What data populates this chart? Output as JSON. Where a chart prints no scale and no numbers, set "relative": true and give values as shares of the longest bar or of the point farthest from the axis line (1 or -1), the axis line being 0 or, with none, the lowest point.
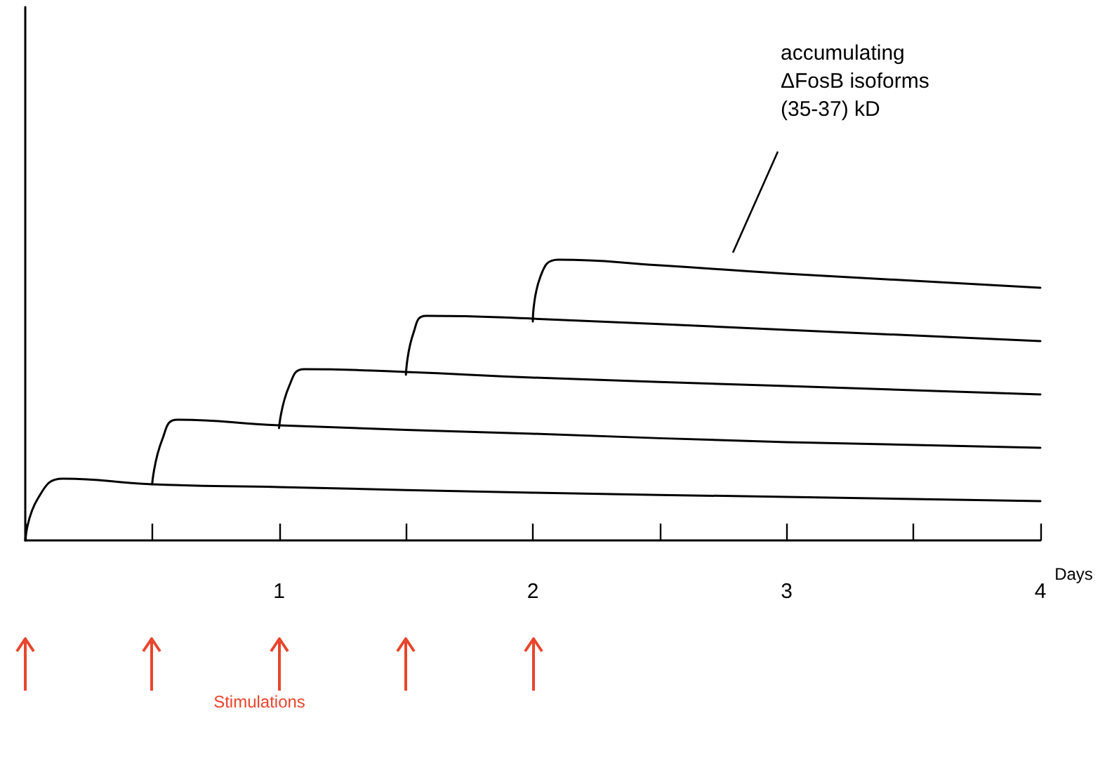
{
  "chart_data": {
    "type": "line",
    "relative": true,
    "xlabel": "Days",
    "xlim": [
      0,
      4
    ],
    "xticks": [
      {
        "value": 0,
        "label": null
      },
      {
        "value": 0.5,
        "label": null
      },
      1,
      {
        "value": 1.5,
        "label": null
      },
      2,
      {
        "value": 2.5,
        "label": null
      },
      3,
      {
        "value": 3.5,
        "label": null
      },
      4
    ],
    "series": [
      {
        "color": "#000000",
        "x": [
          0,
          0.05,
          0.15,
          0.5,
          1,
          2,
          3,
          4
        ],
        "values": [
          0,
          0.15,
          0.22,
          0.2,
          0.19,
          0.17,
          0.155,
          0.14
        ]
      },
      {
        "color": "#000000",
        "x": [
          0.5,
          0.54,
          0.6,
          1,
          2,
          3,
          4
        ],
        "values": [
          0.2,
          0.36,
          0.43,
          0.41,
          0.38,
          0.35,
          0.33
        ]
      },
      {
        "color": "#000000",
        "x": [
          1,
          1.04,
          1.1,
          1.5,
          2,
          3,
          4
        ],
        "values": [
          0.4,
          0.55,
          0.61,
          0.6,
          0.58,
          0.55,
          0.52
        ]
      },
      {
        "color": "#000000",
        "x": [
          1.5,
          1.53,
          1.58,
          2,
          3,
          4
        ],
        "values": [
          0.59,
          0.74,
          0.8,
          0.79,
          0.75,
          0.71
        ]
      },
      {
        "color": "#000000",
        "x": [
          2,
          2.03,
          2.1,
          2.5,
          3,
          4
        ],
        "values": [
          0.78,
          0.94,
          1,
          0.98,
          0.95,
          0.9
        ]
      }
    ],
    "annotations": [
      "accumulating\nΔFosB isoforms\n(35-37) kD",
      "Stimulations"
    ],
    "grid": false,
    "marker": "none",
    "line_style": "solid"
  }
}
